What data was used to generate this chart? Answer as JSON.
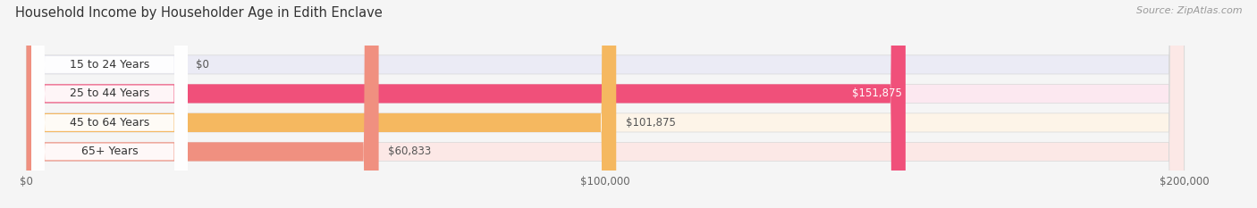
{
  "title": "Household Income by Householder Age in Edith Enclave",
  "source": "Source: ZipAtlas.com",
  "categories": [
    "15 to 24 Years",
    "25 to 44 Years",
    "45 to 64 Years",
    "65+ Years"
  ],
  "values": [
    0,
    151875,
    101875,
    60833
  ],
  "bar_colors": [
    "#b0b4e0",
    "#f0507a",
    "#f5b860",
    "#f09080"
  ],
  "bar_bg_colors": [
    "#ebebf5",
    "#fce8f0",
    "#fdf4e8",
    "#fce8e6"
  ],
  "value_labels": [
    "$0",
    "$151,875",
    "$101,875",
    "$60,833"
  ],
  "value_inside": [
    false,
    true,
    false,
    false
  ],
  "x_ticks": [
    0,
    100000,
    200000
  ],
  "x_tick_labels": [
    "$0",
    "$100,000",
    "$200,000"
  ],
  "x_max": 200000,
  "figsize": [
    14.06,
    2.33
  ],
  "dpi": 100,
  "bg_color": "#f5f5f5"
}
